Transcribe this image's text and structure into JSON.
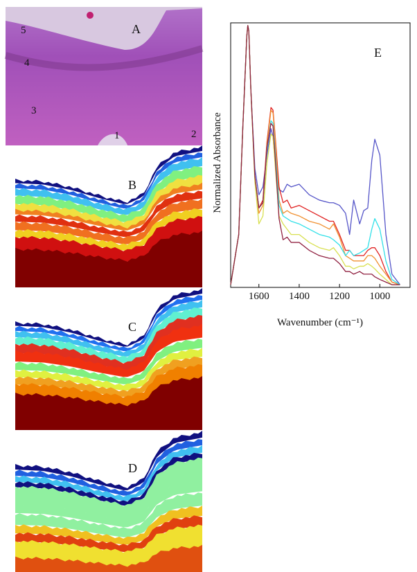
{
  "panels": [
    {
      "label": "A",
      "annotations": [
        "5",
        "4",
        "3",
        "1",
        "2"
      ]
    },
    {
      "label": "B"
    },
    {
      "label": "C"
    },
    {
      "label": "D"
    }
  ],
  "chart_data": {
    "type": "line",
    "annotation": "E",
    "xlabel": "Wavenumber (cm⁻¹)",
    "ylabel": "Normalized Absorbance",
    "xlim": [
      1740,
      850
    ],
    "xticks": [
      1600,
      1400,
      1200,
      1000
    ],
    "ylim": [
      0,
      1
    ],
    "x": [
      1740,
      1700,
      1680,
      1660,
      1655,
      1650,
      1640,
      1620,
      1600,
      1580,
      1560,
      1540,
      1530,
      1520,
      1500,
      1480,
      1460,
      1440,
      1400,
      1350,
      1300,
      1250,
      1230,
      1200,
      1170,
      1150,
      1130,
      1100,
      1080,
      1060,
      1040,
      1025,
      1000,
      970,
      940,
      900
    ],
    "series": [
      {
        "color": "#5555c8",
        "values": [
          0.01,
          0.2,
          0.6,
          0.95,
          0.99,
          0.97,
          0.75,
          0.45,
          0.35,
          0.38,
          0.5,
          0.6,
          0.57,
          0.48,
          0.37,
          0.36,
          0.39,
          0.38,
          0.39,
          0.35,
          0.33,
          0.32,
          0.32,
          0.31,
          0.28,
          0.2,
          0.33,
          0.24,
          0.29,
          0.3,
          0.48,
          0.56,
          0.5,
          0.2,
          0.05,
          0.01
        ]
      },
      {
        "color": "#e02020",
        "values": [
          0.01,
          0.2,
          0.6,
          0.95,
          0.99,
          0.97,
          0.75,
          0.42,
          0.3,
          0.33,
          0.55,
          0.68,
          0.67,
          0.58,
          0.38,
          0.32,
          0.33,
          0.3,
          0.31,
          0.29,
          0.27,
          0.25,
          0.25,
          0.2,
          0.14,
          0.14,
          0.12,
          0.12,
          0.12,
          0.14,
          0.15,
          0.15,
          0.12,
          0.06,
          0.02,
          0.01
        ]
      },
      {
        "color": "#f09030",
        "values": [
          0.01,
          0.2,
          0.6,
          0.95,
          0.99,
          0.97,
          0.75,
          0.42,
          0.28,
          0.31,
          0.54,
          0.67,
          0.66,
          0.57,
          0.33,
          0.28,
          0.29,
          0.28,
          0.27,
          0.25,
          0.24,
          0.22,
          0.24,
          0.19,
          0.12,
          0.11,
          0.1,
          0.1,
          0.1,
          0.12,
          0.12,
          0.11,
          0.08,
          0.05,
          0.02,
          0.01
        ]
      },
      {
        "color": "#30e0e8",
        "values": [
          0.01,
          0.2,
          0.6,
          0.95,
          0.99,
          0.97,
          0.75,
          0.42,
          0.3,
          0.32,
          0.52,
          0.63,
          0.62,
          0.52,
          0.31,
          0.27,
          0.26,
          0.25,
          0.24,
          0.22,
          0.2,
          0.19,
          0.18,
          0.16,
          0.12,
          0.14,
          0.12,
          0.13,
          0.14,
          0.15,
          0.22,
          0.26,
          0.22,
          0.1,
          0.03,
          0.01
        ]
      },
      {
        "color": "#d8e050",
        "values": [
          0.01,
          0.2,
          0.6,
          0.95,
          0.99,
          0.97,
          0.75,
          0.4,
          0.24,
          0.27,
          0.47,
          0.58,
          0.57,
          0.47,
          0.27,
          0.24,
          0.22,
          0.2,
          0.2,
          0.17,
          0.15,
          0.14,
          0.15,
          0.12,
          0.08,
          0.08,
          0.07,
          0.08,
          0.08,
          0.09,
          0.08,
          0.07,
          0.05,
          0.03,
          0.01,
          0.01
        ]
      },
      {
        "color": "#902040",
        "values": [
          0.01,
          0.2,
          0.6,
          0.95,
          0.99,
          0.97,
          0.75,
          0.42,
          0.3,
          0.32,
          0.53,
          0.62,
          0.61,
          0.5,
          0.26,
          0.18,
          0.19,
          0.17,
          0.17,
          0.14,
          0.12,
          0.11,
          0.11,
          0.09,
          0.06,
          0.06,
          0.05,
          0.06,
          0.05,
          0.05,
          0.05,
          0.04,
          0.03,
          0.02,
          0.01,
          0.01
        ]
      }
    ]
  }
}
